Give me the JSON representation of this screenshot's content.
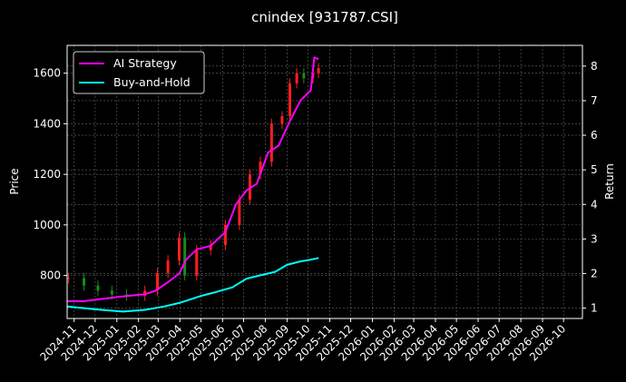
{
  "chart_data": {
    "type": "line",
    "title": "cnindex [931787.CSI]",
    "ylabel": "Price",
    "y2label": "Return",
    "grid": true,
    "legend_placement": "top-left",
    "ylim": [
      630,
      1710
    ],
    "y2lim": [
      0.7,
      8.6
    ],
    "yticks": [
      800,
      1000,
      1200,
      1400,
      1600
    ],
    "y2ticks": [
      1,
      2,
      3,
      4,
      5,
      6,
      7,
      8
    ],
    "xlim": [
      "2024-10-22",
      "2026-10-28"
    ],
    "xticks": [
      "2024-11",
      "2024-12",
      "2025-01",
      "2025-02",
      "2025-03",
      "2025-04",
      "2025-05",
      "2025-06",
      "2025-07",
      "2025-08",
      "2025-09",
      "2025-10",
      "2025-11",
      "2025-12",
      "2026-01",
      "2026-02",
      "2026-03",
      "2026-04",
      "2026-05",
      "2026-06",
      "2026-07",
      "2026-08",
      "2026-09",
      "2026-10"
    ],
    "price_candles": {
      "up_color": "#ff2020",
      "down_color": "#1a8a1a",
      "dates": [
        "2024-10-24",
        "2024-11-15",
        "2024-12-05",
        "2024-12-25",
        "2025-01-15",
        "2025-02-10",
        "2025-02-28",
        "2025-03-15",
        "2025-03-31",
        "2025-04-08",
        "2025-04-25",
        "2025-05-15",
        "2025-06-05",
        "2025-06-25",
        "2025-07-10",
        "2025-07-25",
        "2025-08-10",
        "2025-08-25",
        "2025-09-05",
        "2025-09-15",
        "2025-09-25",
        "2025-10-08",
        "2025-10-16"
      ],
      "close": [
        790,
        760,
        740,
        725,
        720,
        740,
        810,
        860,
        950,
        800,
        900,
        920,
        1000,
        1100,
        1200,
        1250,
        1400,
        1430,
        1560,
        1600,
        1580,
        1600,
        1620
      ]
    },
    "series": [
      {
        "name": "AI Strategy",
        "color": "#ff00ff",
        "x": [
          "2024-10-22",
          "2024-11-15",
          "2024-12-05",
          "2024-12-25",
          "2025-01-15",
          "2025-02-10",
          "2025-02-25",
          "2025-03-15",
          "2025-03-31",
          "2025-04-10",
          "2025-04-25",
          "2025-05-15",
          "2025-06-05",
          "2025-06-20",
          "2025-07-05",
          "2025-07-20",
          "2025-08-05",
          "2025-08-20",
          "2025-09-05",
          "2025-09-20",
          "2025-10-05",
          "2025-10-10",
          "2025-10-16"
        ],
        "values": [
          1.2,
          1.2,
          1.25,
          1.3,
          1.35,
          1.4,
          1.5,
          1.75,
          2.0,
          2.4,
          2.7,
          2.8,
          3.2,
          4.0,
          4.4,
          4.6,
          5.5,
          5.7,
          6.4,
          7.0,
          7.3,
          8.25,
          8.2
        ]
      },
      {
        "name": "Buy-and-Hold",
        "color": "#00ffff",
        "x": [
          "2024-10-22",
          "2024-11-15",
          "2024-12-10",
          "2025-01-10",
          "2025-02-10",
          "2025-03-10",
          "2025-03-31",
          "2025-04-08",
          "2025-05-01",
          "2025-05-20",
          "2025-06-15",
          "2025-07-05",
          "2025-07-25",
          "2025-08-15",
          "2025-09-01",
          "2025-09-20",
          "2025-10-05",
          "2025-10-16"
        ],
        "values": [
          1.05,
          1.0,
          0.95,
          0.9,
          0.95,
          1.05,
          1.15,
          1.2,
          1.35,
          1.45,
          1.6,
          1.85,
          1.95,
          2.05,
          2.25,
          2.35,
          2.4,
          2.45
        ]
      }
    ]
  }
}
